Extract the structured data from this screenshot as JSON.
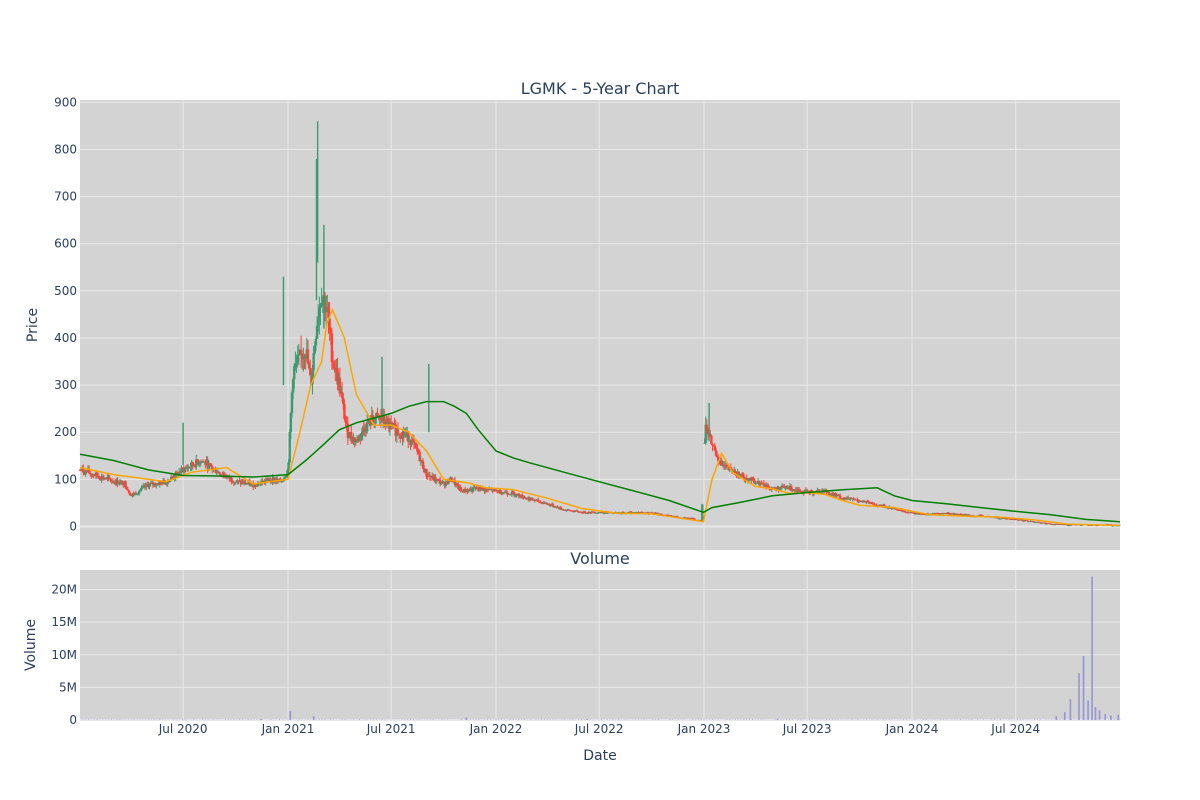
{
  "chart_data": [
    {
      "type": "candlestick",
      "title": "LGMK - 5-Year Chart",
      "xlabel": "",
      "ylabel": "Price",
      "ylim": [
        -50,
        905
      ],
      "yticks": [
        0,
        100,
        200,
        300,
        400,
        500,
        600,
        700,
        800,
        900
      ],
      "xlim": [
        "2020-01-02",
        "2024-12-31"
      ],
      "xticks": [
        {
          "date": "2020-07-01",
          "label": "Jul 2020"
        },
        {
          "date": "2021-01-01",
          "label": "Jan 2021"
        },
        {
          "date": "2021-07-01",
          "label": "Jul 2021"
        },
        {
          "date": "2022-01-01",
          "label": "Jan 2022"
        },
        {
          "date": "2022-07-01",
          "label": "Jul 2022"
        },
        {
          "date": "2023-01-01",
          "label": "Jan 2023"
        },
        {
          "date": "2023-07-01",
          "label": "Jul 2023"
        },
        {
          "date": "2024-01-01",
          "label": "Jan 2024"
        },
        {
          "date": "2024-07-01",
          "label": "Jul 2024"
        }
      ],
      "grid": true,
      "colors": {
        "increasing": "#3d9970",
        "decreasing": "#ff4136",
        "ma_short": "#ffa500",
        "ma_long": "#008000",
        "plot_bg": "#d3d3d3",
        "grid": "#e8e8e8"
      },
      "close_series": {
        "dates": [
          "2020-01-02",
          "2020-02-01",
          "2020-03-01",
          "2020-03-20",
          "2020-04-01",
          "2020-05-01",
          "2020-06-01",
          "2020-07-01",
          "2020-08-01",
          "2020-09-01",
          "2020-10-01",
          "2020-11-01",
          "2020-12-01",
          "2020-12-20",
          "2021-01-01",
          "2021-01-10",
          "2021-01-20",
          "2021-02-01",
          "2021-02-10",
          "2021-02-20",
          "2021-03-01",
          "2021-03-10",
          "2021-03-20",
          "2021-04-01",
          "2021-04-15",
          "2021-05-01",
          "2021-05-15",
          "2021-06-01",
          "2021-06-15",
          "2021-07-01",
          "2021-07-15",
          "2021-08-01",
          "2021-08-15",
          "2021-09-01",
          "2021-09-15",
          "2021-10-01",
          "2021-10-15",
          "2021-11-01",
          "2021-12-01",
          "2022-01-01",
          "2022-02-01",
          "2022-03-01",
          "2022-04-01",
          "2022-05-01",
          "2022-06-01",
          "2022-07-01",
          "2022-08-01",
          "2022-09-01",
          "2022-10-01",
          "2022-11-01",
          "2022-12-01",
          "2022-12-28",
          "2023-01-03",
          "2023-01-15",
          "2023-02-01",
          "2023-03-01",
          "2023-04-01",
          "2023-05-01",
          "2023-06-01",
          "2023-07-01",
          "2023-08-01",
          "2023-09-01",
          "2023-10-01",
          "2023-11-01",
          "2023-12-01",
          "2024-01-01",
          "2024-02-01",
          "2024-03-01",
          "2024-04-01",
          "2024-05-01",
          "2024-06-01",
          "2024-07-01",
          "2024-08-01",
          "2024-09-01",
          "2024-10-01",
          "2024-11-01",
          "2024-12-31"
        ],
        "close": [
          120,
          108,
          95,
          92,
          65,
          88,
          95,
          120,
          140,
          115,
          95,
          88,
          100,
          95,
          120,
          330,
          350,
          380,
          300,
          430,
          500,
          460,
          360,
          300,
          200,
          180,
          210,
          230,
          225,
          210,
          200,
          190,
          160,
          110,
          100,
          90,
          100,
          75,
          80,
          75,
          70,
          58,
          48,
          35,
          30,
          30,
          28,
          30,
          28,
          22,
          18,
          12,
          215,
          175,
          130,
          110,
          95,
          80,
          82,
          72,
          75,
          60,
          55,
          45,
          38,
          28,
          26,
          28,
          24,
          22,
          18,
          15,
          10,
          5,
          3,
          3,
          3
        ]
      },
      "series": [
        {
          "dates": [
            "2020-01-02",
            "2020-03-01",
            "2020-06-01",
            "2020-07-15",
            "2020-09-15",
            "2020-11-01",
            "2021-01-01",
            "2021-01-20",
            "2021-02-10",
            "2021-03-01",
            "2021-03-10",
            "2021-03-20",
            "2021-04-10",
            "2021-05-01",
            "2021-06-01",
            "2021-07-01",
            "2021-08-01",
            "2021-09-01",
            "2021-10-01",
            "2021-11-15",
            "2021-12-15",
            "2022-02-01",
            "2022-04-01",
            "2022-06-01",
            "2022-08-01",
            "2022-10-01",
            "2022-12-31",
            "2023-01-15",
            "2023-02-01",
            "2023-02-20",
            "2023-04-01",
            "2023-05-01",
            "2023-06-01",
            "2023-07-01",
            "2023-08-01",
            "2023-09-01",
            "2023-10-01",
            "2023-12-01",
            "2024-02-01",
            "2024-04-01",
            "2024-06-01",
            "2024-08-01",
            "2024-10-01",
            "2024-12-31"
          ],
          "values": [
            125,
            110,
            95,
            115,
            125,
            90,
            100,
            190,
            300,
            350,
            430,
            460,
            400,
            280,
            215,
            215,
            200,
            160,
            100,
            92,
            82,
            78,
            60,
            38,
            28,
            27,
            10,
            100,
            155,
            115,
            85,
            80,
            70,
            72,
            68,
            55,
            45,
            40,
            25,
            22,
            20,
            14,
            5,
            2
          ]
        },
        {
          "dates": [
            "2020-01-02",
            "2020-03-01",
            "2020-05-01",
            "2020-07-01",
            "2020-09-01",
            "2020-11-01",
            "2021-01-01",
            "2021-02-01",
            "2021-03-01",
            "2021-04-01",
            "2021-05-01",
            "2021-06-01",
            "2021-07-01",
            "2021-08-01",
            "2021-09-01",
            "2021-10-01",
            "2021-10-20",
            "2021-11-10",
            "2021-12-01",
            "2022-01-01",
            "2022-02-01",
            "2022-03-01",
            "2022-05-01",
            "2022-07-01",
            "2022-09-01",
            "2022-11-01",
            "2022-12-31",
            "2023-01-15",
            "2023-03-01",
            "2023-05-01",
            "2023-07-01",
            "2023-09-01",
            "2023-11-01",
            "2023-12-01",
            "2024-01-01",
            "2024-03-01",
            "2024-05-01",
            "2024-07-01",
            "2024-09-01",
            "2024-11-01",
            "2024-12-31"
          ],
          "values": [
            153,
            140,
            120,
            108,
            107,
            105,
            110,
            140,
            170,
            205,
            220,
            230,
            240,
            255,
            265,
            265,
            255,
            240,
            205,
            160,
            145,
            135,
            115,
            95,
            75,
            55,
            30,
            40,
            50,
            65,
            72,
            78,
            82,
            65,
            55,
            48,
            40,
            32,
            25,
            15,
            10
          ]
        }
      ]
    },
    {
      "type": "bar",
      "title": "Volume",
      "xlabel": "Date",
      "ylabel": "Volume",
      "ylim": [
        0,
        23000000
      ],
      "yticks": [
        {
          "value": 0,
          "label": "0"
        },
        {
          "value": 5000000,
          "label": "5M"
        },
        {
          "value": 10000000,
          "label": "10M"
        },
        {
          "value": 15000000,
          "label": "15M"
        },
        {
          "value": 20000000,
          "label": "20M"
        }
      ],
      "grid": true,
      "colors": {
        "bar": "#7b7bd6"
      },
      "bars": [
        {
          "date": "2020-11-15",
          "value": 150000
        },
        {
          "date": "2021-01-05",
          "value": 1400000
        },
        {
          "date": "2021-02-15",
          "value": 600000
        },
        {
          "date": "2021-11-10",
          "value": 400000
        },
        {
          "date": "2022-06-10",
          "value": 150000
        },
        {
          "date": "2023-05-10",
          "value": 200000
        },
        {
          "date": "2024-09-10",
          "value": 600000
        },
        {
          "date": "2024-09-25",
          "value": 1200000
        },
        {
          "date": "2024-10-05",
          "value": 3200000
        },
        {
          "date": "2024-10-20",
          "value": 7200000
        },
        {
          "date": "2024-10-28",
          "value": 9800000
        },
        {
          "date": "2024-11-05",
          "value": 3000000
        },
        {
          "date": "2024-11-12",
          "value": 22000000
        },
        {
          "date": "2024-11-18",
          "value": 2000000
        },
        {
          "date": "2024-11-25",
          "value": 1500000
        },
        {
          "date": "2024-12-05",
          "value": 900000
        },
        {
          "date": "2024-12-15",
          "value": 700000
        },
        {
          "date": "2024-12-28",
          "value": 800000
        }
      ]
    }
  ]
}
